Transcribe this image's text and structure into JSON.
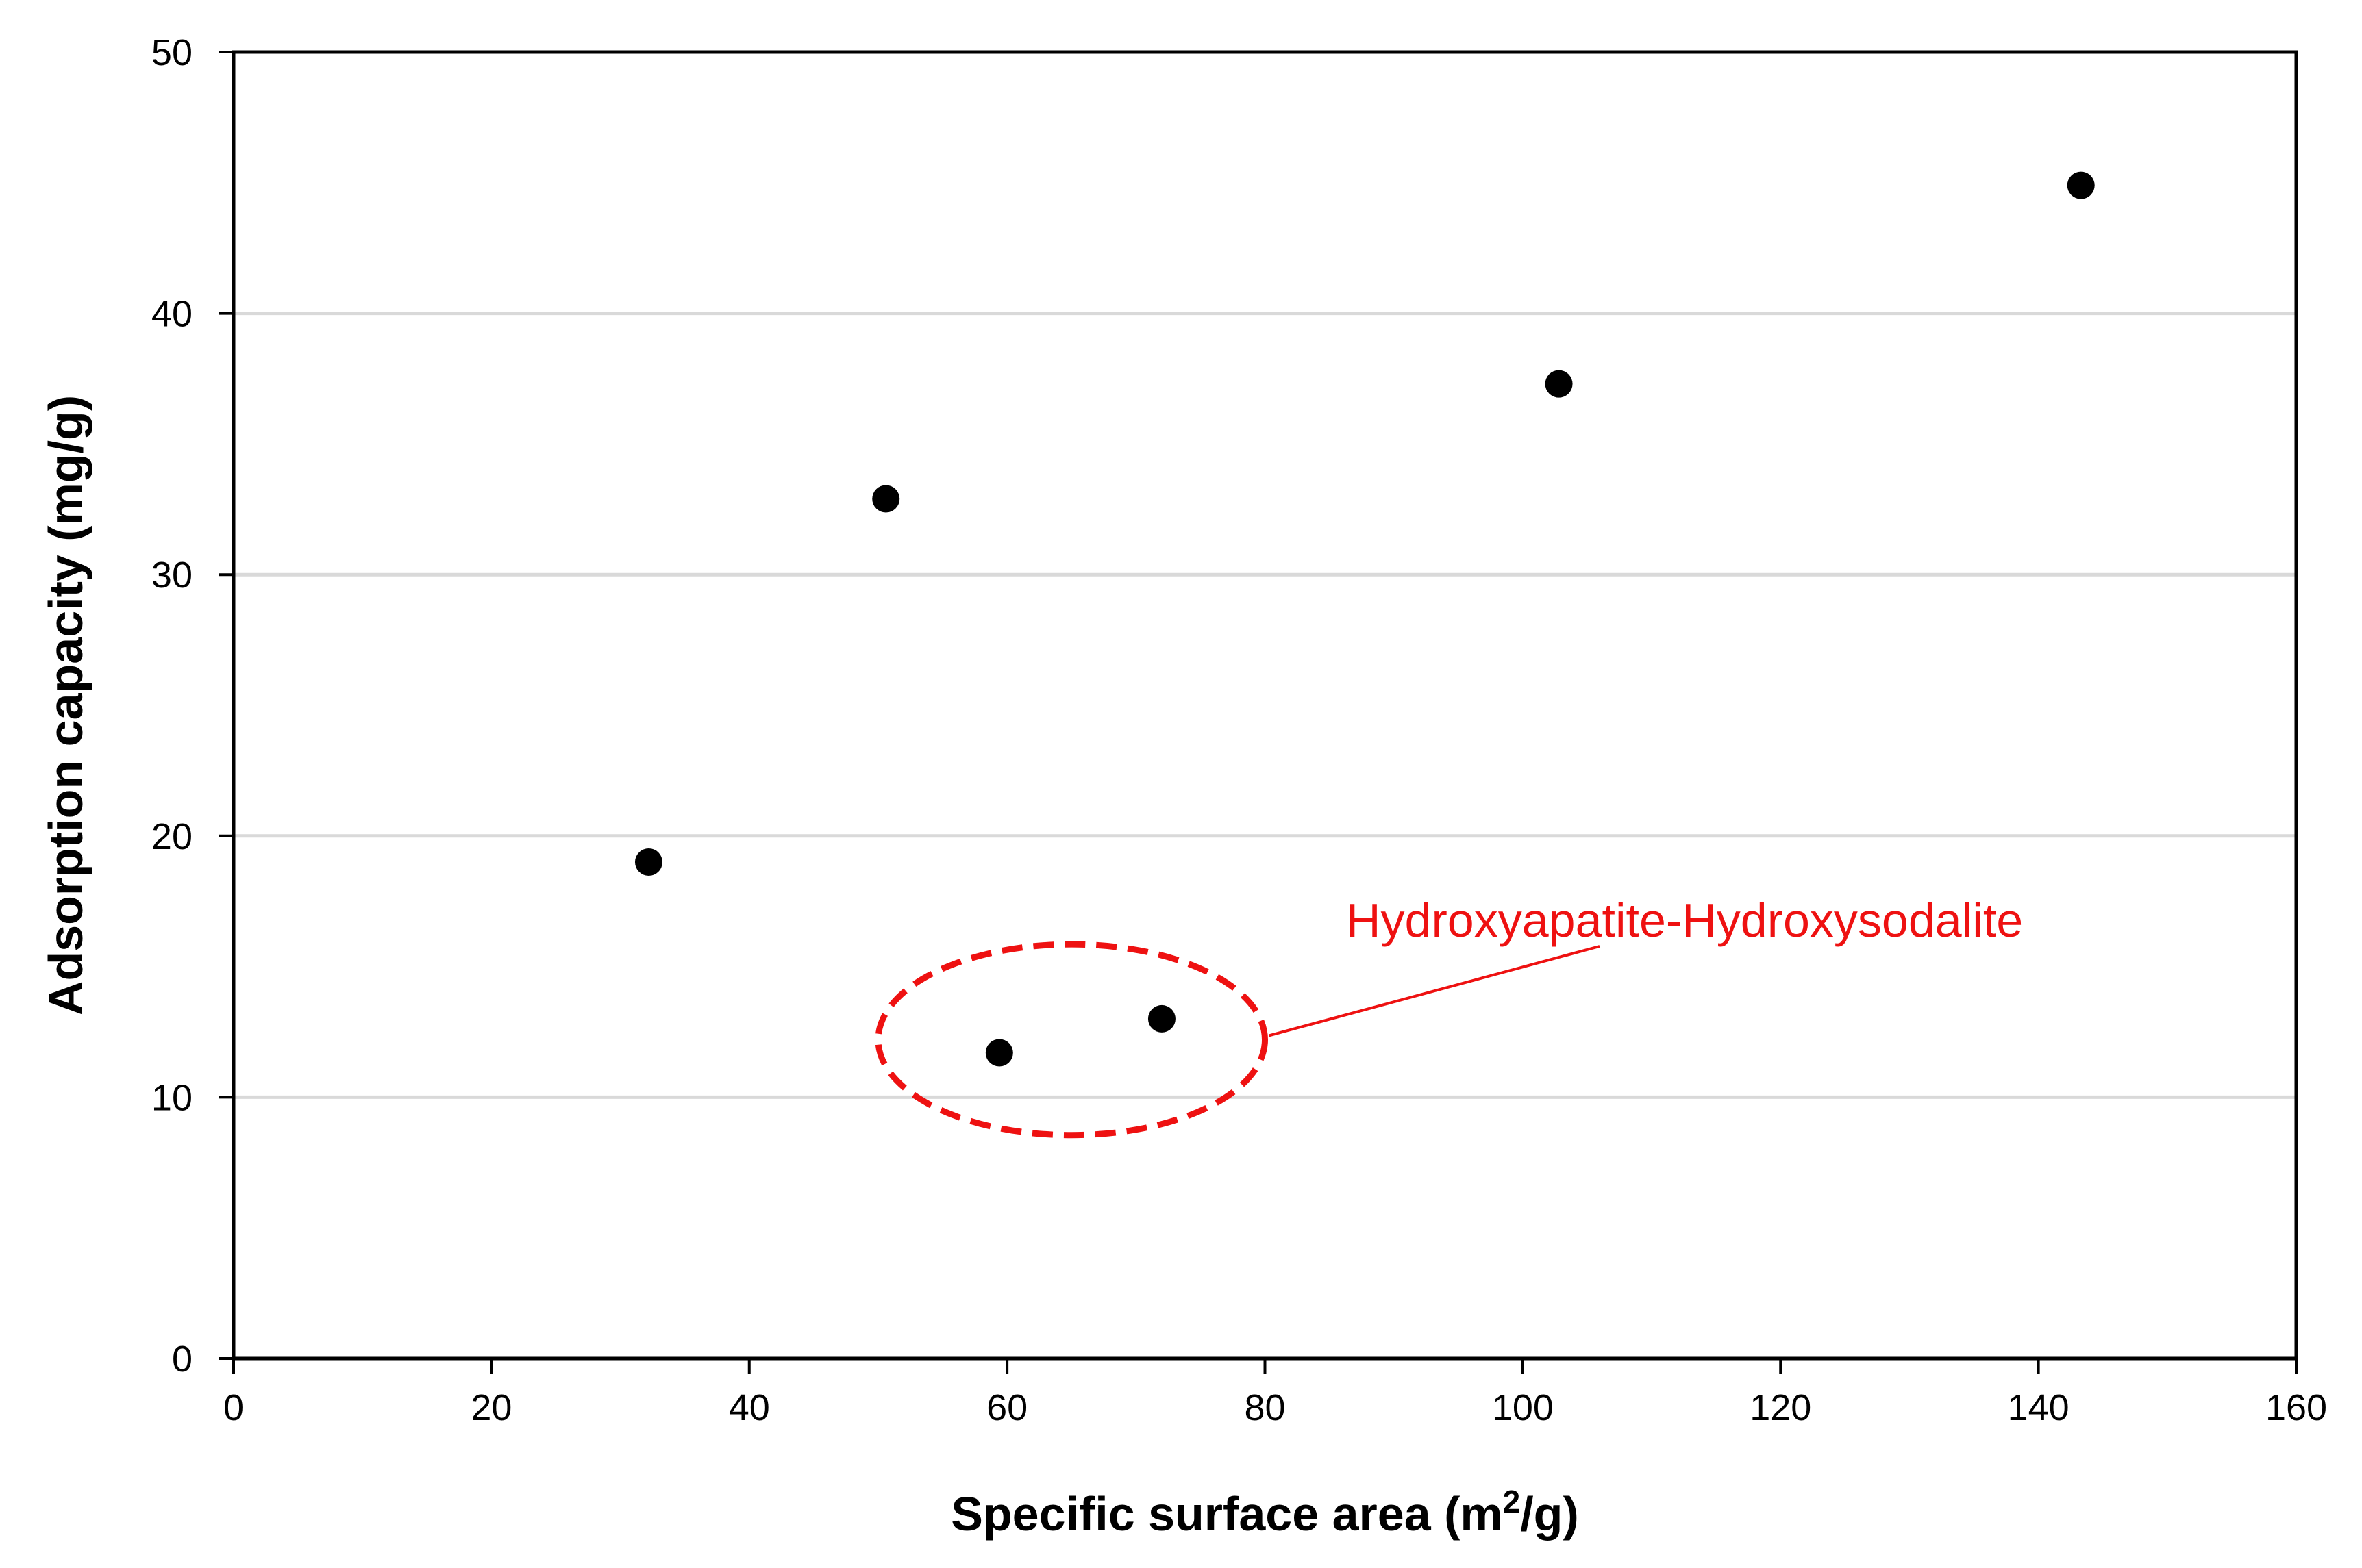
{
  "chart_data": {
    "type": "scatter",
    "title": "",
    "xlabel": "Specific surface area (m",
    "xlabel_superscript": "2",
    "xlabel_suffix": "/g)",
    "ylabel": "Adsorption capacity (mg/g)",
    "xlim": [
      0,
      160
    ],
    "ylim": [
      0,
      50
    ],
    "x_ticks": [
      0,
      20,
      40,
      60,
      80,
      100,
      120,
      140,
      160
    ],
    "y_ticks": [
      0,
      10,
      20,
      30,
      40,
      50
    ],
    "x_tick_labels": [
      "0",
      "20",
      "40",
      "60",
      "80",
      "100",
      "120",
      "140",
      "160"
    ],
    "y_tick_labels": [
      "0",
      "10",
      "20",
      "30",
      "40",
      "50"
    ],
    "grid": "horizontal",
    "series": [
      {
        "name": "samples",
        "color": "#000000",
        "points": [
          {
            "x": 32.2,
            "y": 19.0
          },
          {
            "x": 50.6,
            "y": 32.9
          },
          {
            "x": 59.4,
            "y": 11.7
          },
          {
            "x": 72.0,
            "y": 13.0
          },
          {
            "x": 102.8,
            "y": 37.3
          },
          {
            "x": 143.3,
            "y": 44.9
          }
        ]
      }
    ],
    "annotation": {
      "text": "Hydroxyapatite-Hydroxysodalite",
      "color": "#ee1111",
      "encircles_x_range": [
        50,
        80
      ],
      "encircles_y_range": [
        8.5,
        15.8
      ],
      "center": {
        "x": 65,
        "y": 12.2
      }
    },
    "colors": {
      "grid": "#d9d9d9",
      "axis": "#000000",
      "annotation": "#ee1111"
    }
  }
}
